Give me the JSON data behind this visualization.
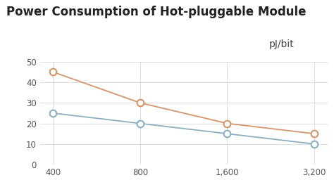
{
  "title": "Power Consumption of Hot-pluggable Module",
  "ylabel": "pJ/bit",
  "x_labels": [
    "400",
    "800",
    "1,600",
    "3,200"
  ],
  "series_orange": [
    45,
    30,
    20,
    15
  ],
  "series_blue": [
    25,
    20,
    15,
    10
  ],
  "color_orange": "#D4956A",
  "color_blue": "#8AAFC0",
  "ylim": [
    0,
    50
  ],
  "yticks": [
    0,
    10,
    20,
    30,
    40,
    50
  ],
  "background_color": "#FFFFFF",
  "grid_color": "#D8D8D8",
  "title_fontsize": 12,
  "ylabel_fontsize": 10,
  "tick_fontsize": 8.5,
  "marker_size": 7,
  "line_width": 1.3
}
